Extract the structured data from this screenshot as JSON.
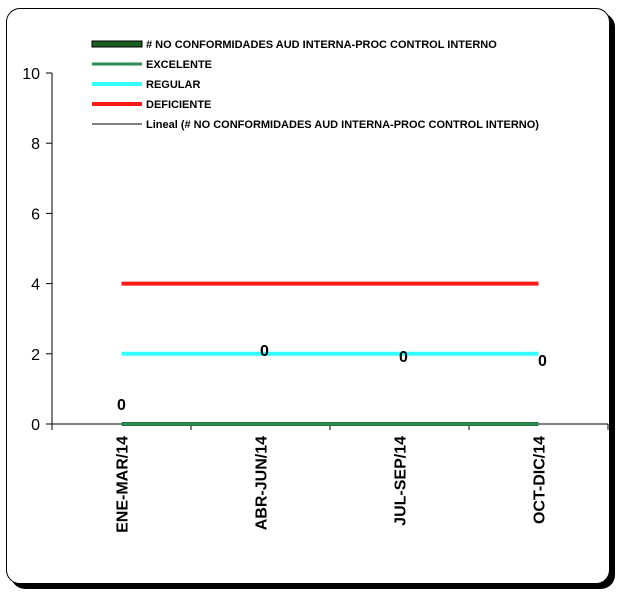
{
  "chart_data": {
    "type": "line",
    "categories": [
      "ENE-MAR/14",
      "ABR-JUN/14",
      "JUL-SEP/14",
      "OCT-DIC/14"
    ],
    "ylim": [
      0,
      10
    ],
    "yticks": [
      0,
      2,
      4,
      6,
      8,
      10
    ],
    "grid": false,
    "legend_position": "top",
    "series": [
      {
        "name": "# NO CONFORMIDADES AUD INTERNA-PROC CONTROL INTERNO",
        "values": [
          0,
          0,
          0,
          0
        ],
        "color": "#1b5e20",
        "show_labels": true
      },
      {
        "name": "EXCELENTE",
        "values": [
          0,
          0,
          0,
          0
        ],
        "color": "#2e8b57",
        "show_labels": false
      },
      {
        "name": "REGULAR",
        "values": [
          2,
          2,
          2,
          2
        ],
        "color": "#33ffff",
        "show_labels": false
      },
      {
        "name": "DEFICIENTE",
        "values": [
          4,
          4,
          4,
          4
        ],
        "color": "#ff1a1a",
        "show_labels": false
      },
      {
        "name": "Lineal (# NO CONFORMIDADES AUD INTERNA-PROC CONTROL INTERNO)",
        "values": [
          0,
          0,
          0,
          0
        ],
        "color": "#000000",
        "show_labels": false
      }
    ],
    "data_labels": [
      "0",
      "0",
      "0",
      "0"
    ]
  }
}
